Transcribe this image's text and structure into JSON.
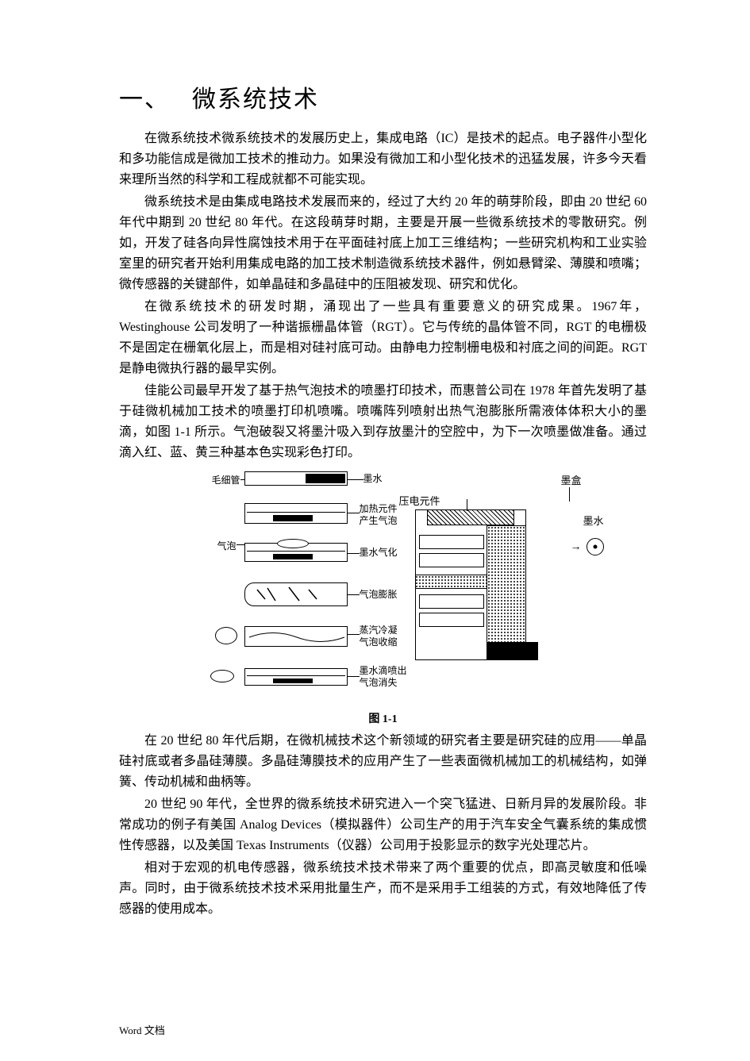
{
  "title": {
    "number": "一、",
    "text": "微系统技术"
  },
  "paragraphs": {
    "p1": "在微系统技术微系统技术的发展历史上，集成电路（IC）是技术的起点。电子器件小型化和多功能信成是微加工技术的推动力。如果没有微加工和小型化技术的迅猛发展，许多今天看来理所当然的科学和工程成就都不可能实现。",
    "p2": "微系统技术是由集成电路技术发展而来的，经过了大约 20 年的萌芽阶段，即由 20 世纪 60 年代中期到 20 世纪 80 年代。在这段萌芽时期，主要是开展一些微系统技术的零散研究。例如，开发了硅各向异性腐蚀技术用于在平面硅衬底上加工三维结构；一些研究机构和工业实验室里的研究者开始利用集成电路的加工技术制造微系统技术器件，例如悬臂梁、薄膜和喷嘴；微传感器的关键部件，如单晶硅和多晶硅中的压阻被发现、研究和优化。",
    "p3": "在微系统技术的研发时期，涌现出了一些具有重要意义的研究成果。1967年，Westinghouse 公司发明了一种谐振栅晶体管（RGT）。它与传统的晶体管不同，RGT 的电栅极不是固定在栅氧化层上，而是相对硅衬底可动。由静电力控制栅电极和衬底之间的间距。RGT 是静电微执行器的最早实例。",
    "p4": "佳能公司最早开发了基于热气泡技术的喷墨打印技术，而惠普公司在 1978 年首先发明了基于硅微机械加工技术的喷墨打印机喷嘴。喷嘴阵列喷射出热气泡膨胀所需液体体积大小的墨滴，如图 1-1 所示。气泡破裂又将墨汁吸入到存放墨汁的空腔中，为下一次喷墨做准备。通过滴入红、蓝、黄三种基本色实现彩色打印。",
    "p5": "在 20 世纪 80 年代后期，在微机械技术这个新领域的研究者主要是研究硅的应用——单晶硅衬底或者多晶硅薄膜。多晶硅薄膜技术的应用产生了一些表面微机械加工的机械结构，如弹簧、传动机械和曲柄等。",
    "p6": "20 世纪 90 年代，全世界的微系统技术研究进入一个突飞猛进、日新月异的发展阶段。非常成功的例子有美国 Analog Devices（模拟器件）公司生产的用于汽车安全气囊系统的集成惯性传感器，以及美国 Texas Instruments（仪器）公司用于投影显示的数字光处理芯片。",
    "p7": "相对于宏观的机电传感器，微系统技术技术带来了两个重要的优点，即高灵敏度和低噪声。同时，由于微系统技术技术采用批量生产，而不是采用手工组装的方式，有效地降低了传感器的使用成本。"
  },
  "figure": {
    "caption": "图 1-1",
    "left_labels": {
      "capillary": "毛细管",
      "bubble": "气泡"
    },
    "right_labels": {
      "ink": "墨水",
      "heating": "加热元件\n产生气泡",
      "vaporize": "墨水气化",
      "expand": "气泡膨胀",
      "cooling": "蒸汽冷凝\n气泡收缩",
      "eject": "墨水滴喷出\n气泡消失"
    },
    "piezo_labels": {
      "piezo": "压电元件",
      "cartridge": "墨盒",
      "ink": "墨水"
    },
    "colors": {
      "line": "#000000",
      "background": "#ffffff"
    }
  },
  "footer": "Word 文档"
}
